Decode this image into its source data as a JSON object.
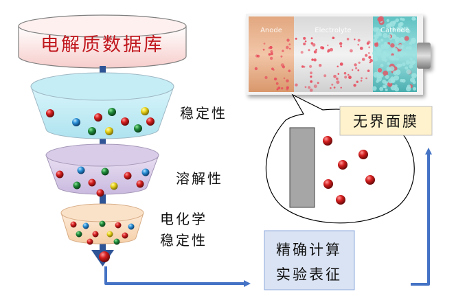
{
  "database": {
    "label": "电解质数据库"
  },
  "funnel": {
    "stages": [
      {
        "label_lines": [
          "稳定性"
        ]
      },
      {
        "label_lines": [
          "溶解性"
        ]
      },
      {
        "label_lines": [
          "电化学",
          "稳定性"
        ]
      }
    ]
  },
  "methods_box": {
    "lines": [
      "精确计算",
      "实验表征"
    ]
  },
  "interface_box": {
    "label": "无界面膜"
  },
  "battery": {
    "anode": "Anode",
    "electrolyte": "Electrolyte",
    "cathode": "Cathode"
  },
  "colors": {
    "database_text": "#c0171d",
    "arrow": "#4472c4",
    "methods_bg": "#dae3f3",
    "interface_bg": "#fff2cc",
    "anode": "#e8b493",
    "cathode": "#7fd1d1",
    "molecule_red": "#c0171d"
  }
}
